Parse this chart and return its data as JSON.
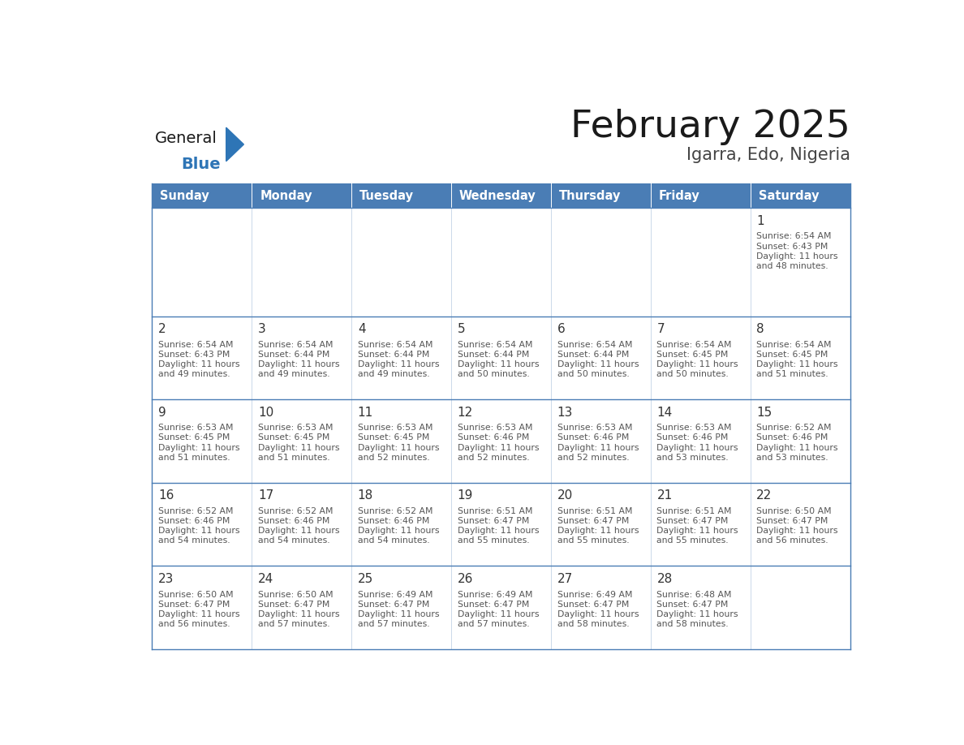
{
  "title": "February 2025",
  "subtitle": "Igarra, Edo, Nigeria",
  "days_of_week": [
    "Sunday",
    "Monday",
    "Tuesday",
    "Wednesday",
    "Thursday",
    "Friday",
    "Saturday"
  ],
  "header_bg": "#4a7db5",
  "header_text": "#ffffff",
  "cell_bg": "#ffffff",
  "row1_bg": "#f0f4f8",
  "border_color": "#4a7db5",
  "day_num_color": "#333333",
  "info_text_color": "#555555",
  "title_color": "#1a1a1a",
  "subtitle_color": "#444444",
  "logo_general_color": "#1a1a1a",
  "logo_blue_color": "#2e75b6",
  "calendar_data": [
    [
      null,
      null,
      null,
      null,
      null,
      null,
      {
        "day": 1,
        "sunrise": "6:54 AM",
        "sunset": "6:43 PM",
        "daylight": "11 hours and 48 minutes."
      }
    ],
    [
      {
        "day": 2,
        "sunrise": "6:54 AM",
        "sunset": "6:43 PM",
        "daylight": "11 hours and 49 minutes."
      },
      {
        "day": 3,
        "sunrise": "6:54 AM",
        "sunset": "6:44 PM",
        "daylight": "11 hours and 49 minutes."
      },
      {
        "day": 4,
        "sunrise": "6:54 AM",
        "sunset": "6:44 PM",
        "daylight": "11 hours and 49 minutes."
      },
      {
        "day": 5,
        "sunrise": "6:54 AM",
        "sunset": "6:44 PM",
        "daylight": "11 hours and 50 minutes."
      },
      {
        "day": 6,
        "sunrise": "6:54 AM",
        "sunset": "6:44 PM",
        "daylight": "11 hours and 50 minutes."
      },
      {
        "day": 7,
        "sunrise": "6:54 AM",
        "sunset": "6:45 PM",
        "daylight": "11 hours and 50 minutes."
      },
      {
        "day": 8,
        "sunrise": "6:54 AM",
        "sunset": "6:45 PM",
        "daylight": "11 hours and 51 minutes."
      }
    ],
    [
      {
        "day": 9,
        "sunrise": "6:53 AM",
        "sunset": "6:45 PM",
        "daylight": "11 hours and 51 minutes."
      },
      {
        "day": 10,
        "sunrise": "6:53 AM",
        "sunset": "6:45 PM",
        "daylight": "11 hours and 51 minutes."
      },
      {
        "day": 11,
        "sunrise": "6:53 AM",
        "sunset": "6:45 PM",
        "daylight": "11 hours and 52 minutes."
      },
      {
        "day": 12,
        "sunrise": "6:53 AM",
        "sunset": "6:46 PM",
        "daylight": "11 hours and 52 minutes."
      },
      {
        "day": 13,
        "sunrise": "6:53 AM",
        "sunset": "6:46 PM",
        "daylight": "11 hours and 52 minutes."
      },
      {
        "day": 14,
        "sunrise": "6:53 AM",
        "sunset": "6:46 PM",
        "daylight": "11 hours and 53 minutes."
      },
      {
        "day": 15,
        "sunrise": "6:52 AM",
        "sunset": "6:46 PM",
        "daylight": "11 hours and 53 minutes."
      }
    ],
    [
      {
        "day": 16,
        "sunrise": "6:52 AM",
        "sunset": "6:46 PM",
        "daylight": "11 hours and 54 minutes."
      },
      {
        "day": 17,
        "sunrise": "6:52 AM",
        "sunset": "6:46 PM",
        "daylight": "11 hours and 54 minutes."
      },
      {
        "day": 18,
        "sunrise": "6:52 AM",
        "sunset": "6:46 PM",
        "daylight": "11 hours and 54 minutes."
      },
      {
        "day": 19,
        "sunrise": "6:51 AM",
        "sunset": "6:47 PM",
        "daylight": "11 hours and 55 minutes."
      },
      {
        "day": 20,
        "sunrise": "6:51 AM",
        "sunset": "6:47 PM",
        "daylight": "11 hours and 55 minutes."
      },
      {
        "day": 21,
        "sunrise": "6:51 AM",
        "sunset": "6:47 PM",
        "daylight": "11 hours and 55 minutes."
      },
      {
        "day": 22,
        "sunrise": "6:50 AM",
        "sunset": "6:47 PM",
        "daylight": "11 hours and 56 minutes."
      }
    ],
    [
      {
        "day": 23,
        "sunrise": "6:50 AM",
        "sunset": "6:47 PM",
        "daylight": "11 hours and 56 minutes."
      },
      {
        "day": 24,
        "sunrise": "6:50 AM",
        "sunset": "6:47 PM",
        "daylight": "11 hours and 57 minutes."
      },
      {
        "day": 25,
        "sunrise": "6:49 AM",
        "sunset": "6:47 PM",
        "daylight": "11 hours and 57 minutes."
      },
      {
        "day": 26,
        "sunrise": "6:49 AM",
        "sunset": "6:47 PM",
        "daylight": "11 hours and 57 minutes."
      },
      {
        "day": 27,
        "sunrise": "6:49 AM",
        "sunset": "6:47 PM",
        "daylight": "11 hours and 58 minutes."
      },
      {
        "day": 28,
        "sunrise": "6:48 AM",
        "sunset": "6:47 PM",
        "daylight": "11 hours and 58 minutes."
      },
      null
    ]
  ]
}
